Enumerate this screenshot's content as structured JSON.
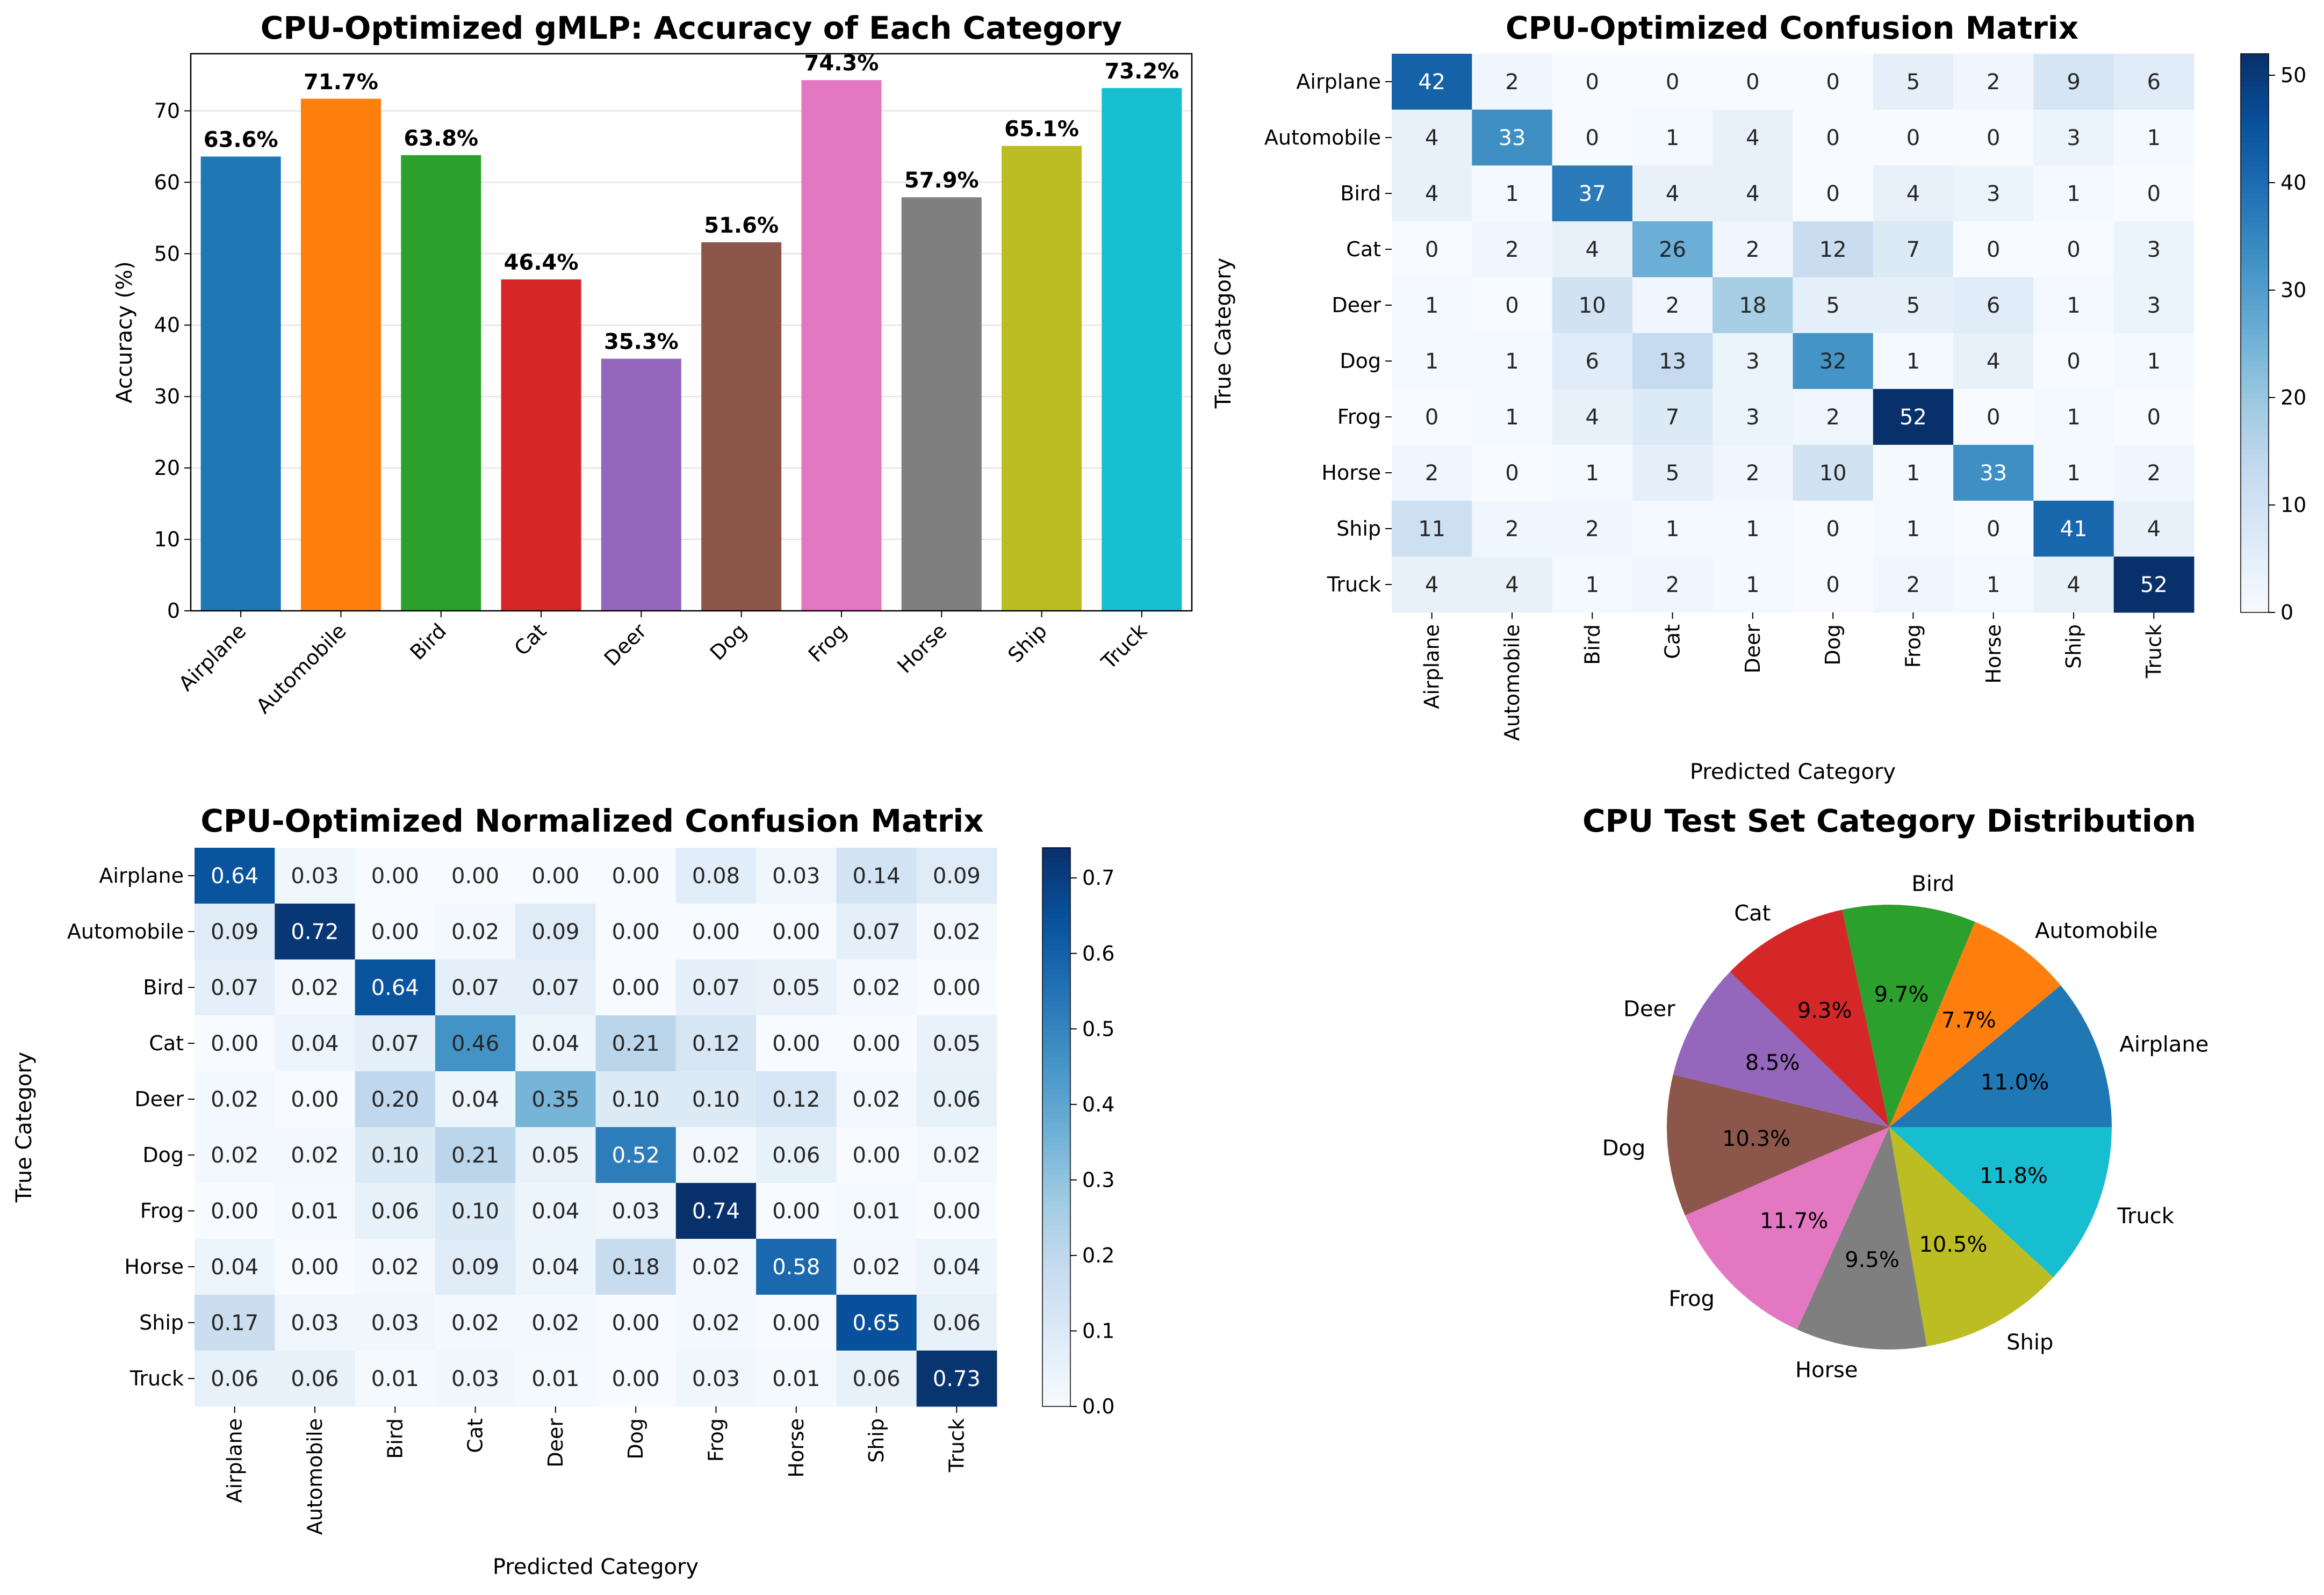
{
  "categories": [
    "Airplane",
    "Automobile",
    "Bird",
    "Cat",
    "Deer",
    "Dog",
    "Frog",
    "Horse",
    "Ship",
    "Truck"
  ],
  "colors": {
    "bars": [
      "#1f77b4",
      "#ff7f0e",
      "#2ca02c",
      "#d62728",
      "#9467bd",
      "#8c564b",
      "#e377c2",
      "#7f7f7f",
      "#bcbd22",
      "#17becf"
    ],
    "colormap": [
      "#f7fbff",
      "#deebf7",
      "#c6dbef",
      "#9ecae1",
      "#6baed6",
      "#4292c6",
      "#2171b5",
      "#08519c",
      "#08306b"
    ]
  },
  "chart_data": [
    {
      "type": "bar",
      "title": "CPU-Optimized gMLP: Accuracy of Each Category",
      "xlabel": "",
      "ylabel": "Accuracy (%)",
      "ylim": [
        0,
        78
      ],
      "yticks": [
        0,
        10,
        20,
        30,
        40,
        50,
        60,
        70
      ],
      "categories": [
        "Airplane",
        "Automobile",
        "Bird",
        "Cat",
        "Deer",
        "Dog",
        "Frog",
        "Horse",
        "Ship",
        "Truck"
      ],
      "values": [
        63.6,
        71.7,
        63.8,
        46.4,
        35.3,
        51.6,
        74.3,
        57.9,
        65.1,
        73.2
      ],
      "value_labels": [
        "63.6%",
        "71.7%",
        "63.8%",
        "46.4%",
        "35.3%",
        "51.6%",
        "74.3%",
        "57.9%",
        "65.1%",
        "73.2%"
      ],
      "grid": "y"
    },
    {
      "type": "heatmap",
      "title": "CPU-Optimized Confusion Matrix",
      "xlabel": "Predicted Category",
      "ylabel": "True Category",
      "rows": [
        "Airplane",
        "Automobile",
        "Bird",
        "Cat",
        "Deer",
        "Dog",
        "Frog",
        "Horse",
        "Ship",
        "Truck"
      ],
      "cols": [
        "Airplane",
        "Automobile",
        "Bird",
        "Cat",
        "Deer",
        "Dog",
        "Frog",
        "Horse",
        "Ship",
        "Truck"
      ],
      "values": [
        [
          42,
          2,
          0,
          0,
          0,
          0,
          5,
          2,
          9,
          6
        ],
        [
          4,
          33,
          0,
          1,
          4,
          0,
          0,
          0,
          3,
          1
        ],
        [
          4,
          1,
          37,
          4,
          4,
          0,
          4,
          3,
          1,
          0
        ],
        [
          0,
          2,
          4,
          26,
          2,
          12,
          7,
          0,
          0,
          3
        ],
        [
          1,
          0,
          10,
          2,
          18,
          5,
          5,
          6,
          1,
          3
        ],
        [
          1,
          1,
          6,
          13,
          3,
          32,
          1,
          4,
          0,
          1
        ],
        [
          0,
          1,
          4,
          7,
          3,
          2,
          52,
          0,
          1,
          0
        ],
        [
          2,
          0,
          1,
          5,
          2,
          10,
          1,
          33,
          1,
          2
        ],
        [
          11,
          2,
          2,
          1,
          1,
          0,
          1,
          0,
          41,
          4
        ],
        [
          4,
          4,
          1,
          2,
          1,
          0,
          2,
          1,
          4,
          52
        ]
      ],
      "vmin": 0,
      "vmax": 52,
      "colorbar_ticks": [
        0,
        10,
        20,
        30,
        40,
        50
      ],
      "colorbar_tick_labels": [
        "0",
        "10",
        "20",
        "30",
        "40",
        "50"
      ],
      "colormap": "Blues",
      "decimals": 0
    },
    {
      "type": "heatmap",
      "title": "CPU-Optimized Normalized Confusion Matrix",
      "xlabel": "Predicted Category",
      "ylabel": "True Category",
      "rows": [
        "Airplane",
        "Automobile",
        "Bird",
        "Cat",
        "Deer",
        "Dog",
        "Frog",
        "Horse",
        "Ship",
        "Truck"
      ],
      "cols": [
        "Airplane",
        "Automobile",
        "Bird",
        "Cat",
        "Deer",
        "Dog",
        "Frog",
        "Horse",
        "Ship",
        "Truck"
      ],
      "values": [
        [
          0.64,
          0.03,
          0.0,
          0.0,
          0.0,
          0.0,
          0.08,
          0.03,
          0.14,
          0.09
        ],
        [
          0.09,
          0.72,
          0.0,
          0.02,
          0.09,
          0.0,
          0.0,
          0.0,
          0.07,
          0.02
        ],
        [
          0.07,
          0.02,
          0.64,
          0.07,
          0.07,
          0.0,
          0.07,
          0.05,
          0.02,
          0.0
        ],
        [
          0.0,
          0.04,
          0.07,
          0.46,
          0.04,
          0.21,
          0.12,
          0.0,
          0.0,
          0.05
        ],
        [
          0.02,
          0.0,
          0.2,
          0.04,
          0.35,
          0.1,
          0.1,
          0.12,
          0.02,
          0.06
        ],
        [
          0.02,
          0.02,
          0.1,
          0.21,
          0.05,
          0.52,
          0.02,
          0.06,
          0.0,
          0.02
        ],
        [
          0.0,
          0.01,
          0.06,
          0.1,
          0.04,
          0.03,
          0.74,
          0.0,
          0.01,
          0.0
        ],
        [
          0.04,
          0.0,
          0.02,
          0.09,
          0.04,
          0.18,
          0.02,
          0.58,
          0.02,
          0.04
        ],
        [
          0.17,
          0.03,
          0.03,
          0.02,
          0.02,
          0.0,
          0.02,
          0.0,
          0.65,
          0.06
        ],
        [
          0.06,
          0.06,
          0.01,
          0.03,
          0.01,
          0.0,
          0.03,
          0.01,
          0.06,
          0.73
        ]
      ],
      "vmin": 0,
      "vmax": 0.74,
      "colorbar_ticks": [
        0,
        0.1,
        0.2,
        0.3,
        0.4,
        0.5,
        0.6,
        0.7
      ],
      "colorbar_tick_labels": [
        "0.0",
        "0.1",
        "0.2",
        "0.3",
        "0.4",
        "0.5",
        "0.6",
        "0.7"
      ],
      "colormap": "Blues",
      "decimals": 2
    },
    {
      "type": "pie",
      "title": "CPU Test Set Category Distribution",
      "labels": [
        "Airplane",
        "Automobile",
        "Bird",
        "Cat",
        "Deer",
        "Dog",
        "Frog",
        "Horse",
        "Ship",
        "Truck"
      ],
      "values": [
        11.0,
        7.7,
        9.7,
        9.3,
        8.5,
        10.3,
        11.7,
        9.5,
        10.5,
        11.8
      ],
      "value_labels": [
        "11.0%",
        "7.7%",
        "9.7%",
        "9.3%",
        "8.5%",
        "10.3%",
        "11.7%",
        "9.5%",
        "10.5%",
        "11.8%"
      ],
      "start_angle": 0,
      "direction": "counterclockwise"
    }
  ]
}
